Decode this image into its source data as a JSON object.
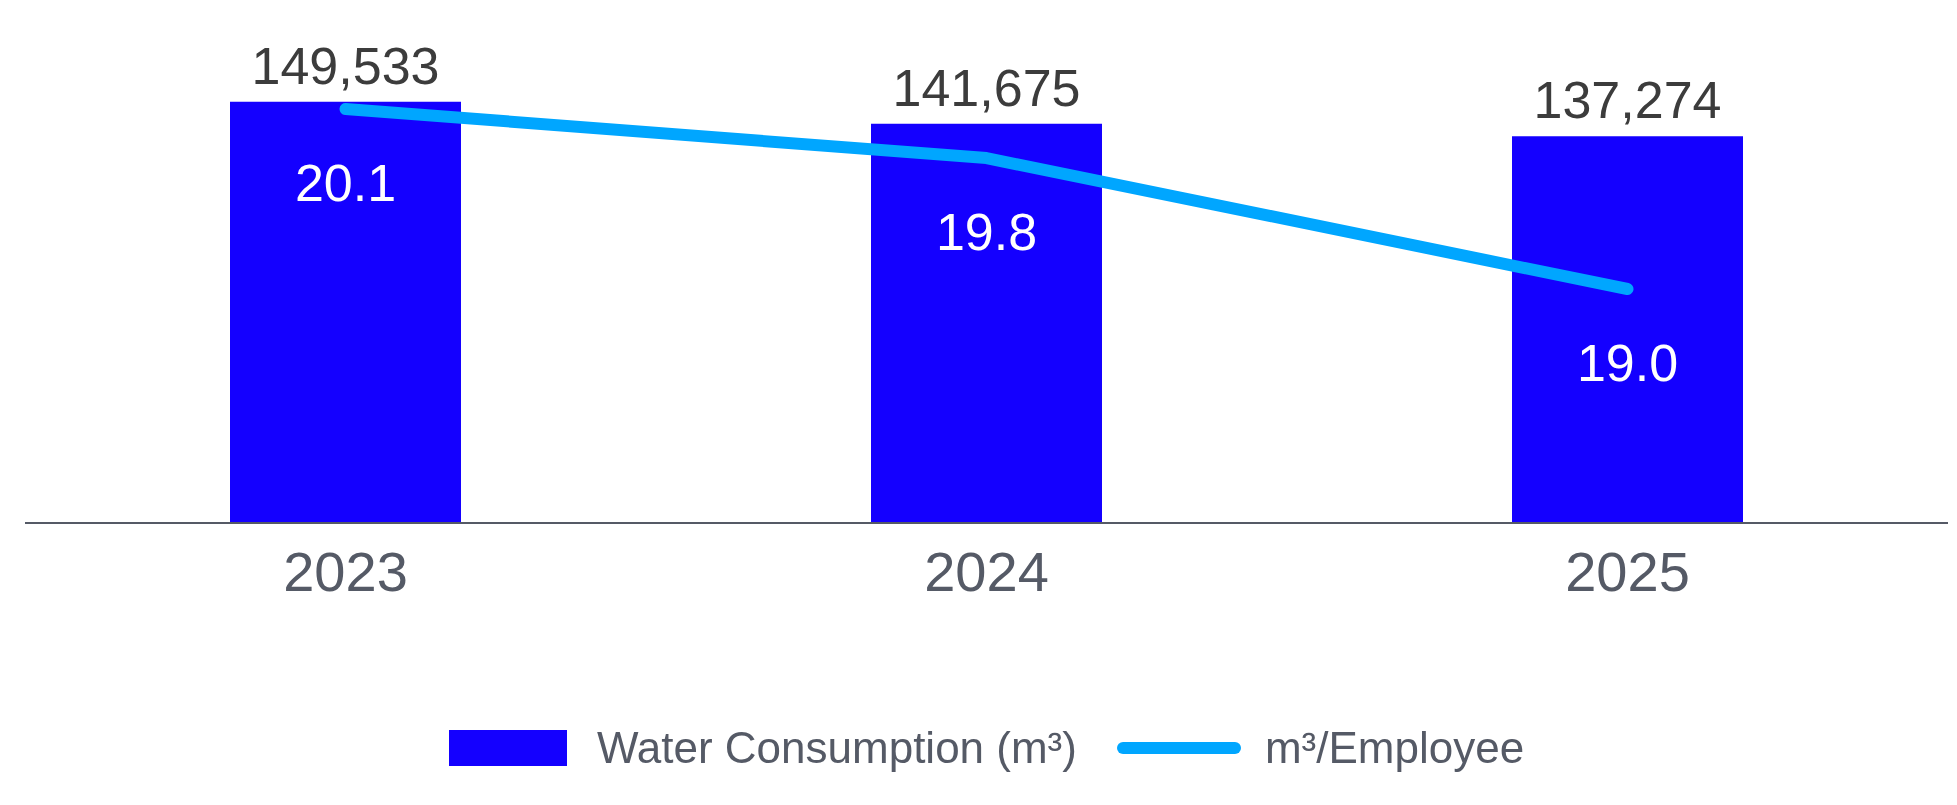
{
  "chart_data": {
    "type": "bar",
    "categories": [
      "2023",
      "2024",
      "2025"
    ],
    "series": [
      {
        "name": "Water Consumption (m³)",
        "color": "#1400ff",
        "values": [
          149533,
          141675,
          137274
        ],
        "value_labels": [
          "149,533",
          "141,675",
          "137,274"
        ]
      },
      {
        "name": "m³/Employee",
        "type": "line",
        "axis": "y2",
        "color": "#00a6ff",
        "values": [
          20.1,
          19.8,
          19.0
        ],
        "value_labels": [
          "20.1",
          "19.8",
          "19.0"
        ]
      }
    ],
    "legend": "bottom",
    "marker": "none"
  }
}
